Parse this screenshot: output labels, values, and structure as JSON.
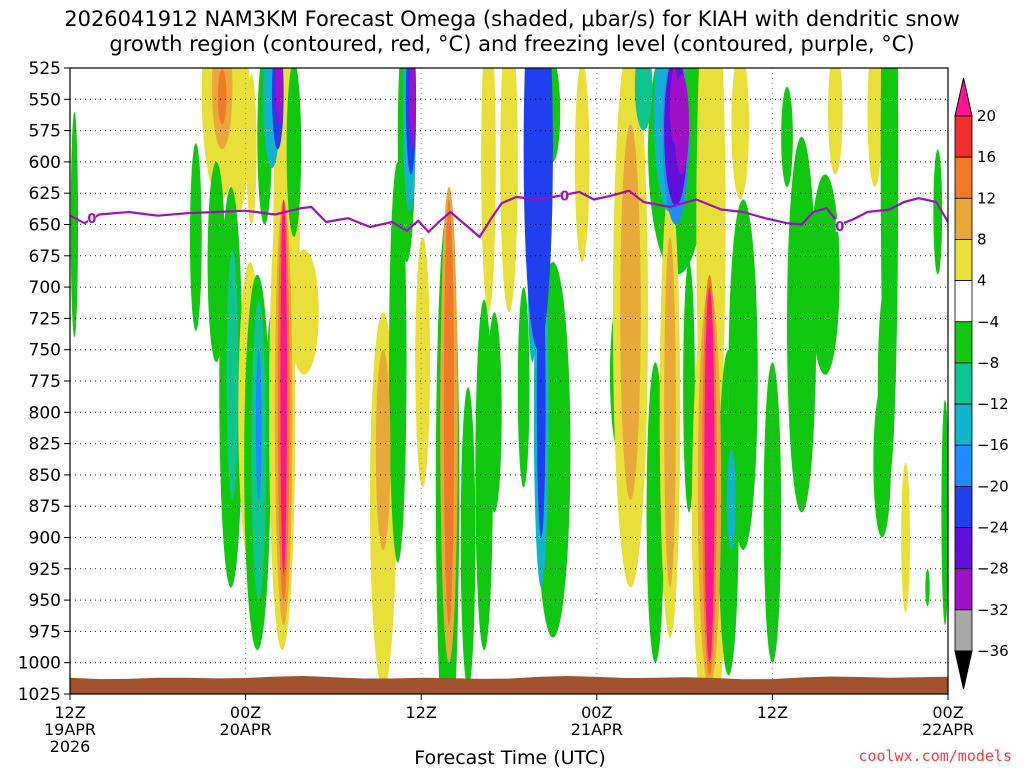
{
  "chart_data": {
    "type": "heatmap",
    "title_line1": "2026041912 NAM3KM Forecast Omega (shaded, μbar/s) for KIAH with dendritic snow",
    "title_line2": "growth region (contoured, red, °C) and freezing level (contoured, purple, °C)",
    "xlabel": "Forecast Time (UTC)",
    "credit": "coolwx.com/models",
    "y_axis": {
      "ticks": [
        "525",
        "550",
        "575",
        "600",
        "625",
        "650",
        "675",
        "700",
        "725",
        "750",
        "775",
        "800",
        "825",
        "850",
        "875",
        "900",
        "925",
        "950",
        "975",
        "1000",
        "1025"
      ],
      "ylim": [
        525,
        1025
      ]
    },
    "x_axis": {
      "ticks": [
        {
          "hour": 0,
          "line1": "12Z",
          "line2": "19APR",
          "line3": "2026"
        },
        {
          "hour": 12,
          "line1": "00Z",
          "line2": "20APR",
          "line3": ""
        },
        {
          "hour": 24,
          "line1": "12Z",
          "line2": "",
          "line3": ""
        },
        {
          "hour": 36,
          "line1": "00Z",
          "line2": "21APR",
          "line3": ""
        },
        {
          "hour": 48,
          "line1": "12Z",
          "line2": "",
          "line3": ""
        },
        {
          "hour": 60,
          "line1": "00Z",
          "line2": "22APR",
          "line3": ""
        }
      ],
      "xlim": [
        0,
        60
      ]
    },
    "colorbar": {
      "labels": [
        "20",
        "16",
        "12",
        "8",
        "4",
        "−4",
        "−8",
        "−12",
        "−16",
        "−20",
        "−24",
        "−28",
        "−32",
        "−36"
      ],
      "bins": [
        {
          "color": "#ff1493"
        },
        {
          "color": "#f03030"
        },
        {
          "color": "#f07a28"
        },
        {
          "color": "#e8a83a"
        },
        {
          "color": "#e8e038"
        },
        {
          "color": "#ffffff"
        },
        {
          "color": "#10c810"
        },
        {
          "color": "#10c490"
        },
        {
          "color": "#10b4cc"
        },
        {
          "color": "#1e8cff"
        },
        {
          "color": "#2040f0"
        },
        {
          "color": "#6010d8"
        },
        {
          "color": "#a010c8"
        },
        {
          "color": "#a8a8a8"
        },
        {
          "color": "#000000"
        }
      ]
    },
    "freezing_level": {
      "label": "0",
      "color": "#9f0fbf",
      "points": [
        [
          0,
          643
        ],
        [
          1,
          649
        ],
        [
          2,
          642
        ],
        [
          4,
          640
        ],
        [
          6,
          643
        ],
        [
          8,
          641
        ],
        [
          10,
          640
        ],
        [
          12,
          639
        ],
        [
          14,
          642
        ],
        [
          15.8,
          637
        ],
        [
          16.5,
          636
        ],
        [
          17.5,
          648
        ],
        [
          19,
          645
        ],
        [
          20.5,
          652
        ],
        [
          22,
          648
        ],
        [
          23,
          655
        ],
        [
          23.8,
          647
        ],
        [
          24.5,
          656
        ],
        [
          25.2,
          648
        ],
        [
          26,
          640
        ],
        [
          27,
          650
        ],
        [
          28,
          660
        ],
        [
          28.8,
          645
        ],
        [
          29.5,
          633
        ],
        [
          30.5,
          628
        ],
        [
          32,
          630
        ],
        [
          33.5,
          627
        ],
        [
          34.8,
          624
        ],
        [
          35.8,
          630
        ],
        [
          37,
          627
        ],
        [
          38.2,
          623
        ],
        [
          39.2,
          632
        ],
        [
          41,
          636
        ],
        [
          42.8,
          630
        ],
        [
          44.5,
          638
        ],
        [
          46,
          640
        ],
        [
          47.5,
          645
        ],
        [
          49,
          649
        ],
        [
          50,
          650
        ],
        [
          50.8,
          640
        ],
        [
          51.7,
          637
        ],
        [
          52.6,
          650
        ],
        [
          53.5,
          646
        ],
        [
          54.5,
          640
        ],
        [
          56,
          638
        ],
        [
          57,
          632
        ],
        [
          58,
          629
        ],
        [
          59.2,
          632
        ],
        [
          60,
          648
        ]
      ],
      "label_positions": [
        [
          1.5,
          645
        ],
        [
          33.8,
          627
        ],
        [
          52.6,
          651
        ]
      ]
    },
    "ground": {
      "color": "#a0522d",
      "pressure_top": 1012
    },
    "omega_regions": [
      {
        "v": 6,
        "t": 10.3,
        "p": 545,
        "dt": 1.3,
        "dp": 85
      },
      {
        "v": 10,
        "t": 10.4,
        "p": 540,
        "dt": 0.7,
        "dp": 50
      },
      {
        "v": 14,
        "t": 10.4,
        "p": 548,
        "dt": 0.3,
        "dp": 22
      },
      {
        "v": 6,
        "t": 11.5,
        "p": 560,
        "dt": 0.8,
        "dp": 80
      },
      {
        "v": 6,
        "t": 12.4,
        "p": 590,
        "dt": 0.35,
        "dp": 60
      },
      {
        "v": -6,
        "t": 0.3,
        "p": 650,
        "dt": 0.25,
        "dp": 90
      },
      {
        "v": -6,
        "t": 8.6,
        "p": 660,
        "dt": 0.4,
        "dp": 75
      },
      {
        "v": -6,
        "t": 10.0,
        "p": 680,
        "dt": 0.6,
        "dp": 80
      },
      {
        "v": -6,
        "t": 11.0,
        "p": 780,
        "dt": 0.8,
        "dp": 160
      },
      {
        "v": -10,
        "t": 11.1,
        "p": 770,
        "dt": 0.4,
        "dp": 100
      },
      {
        "v": 6,
        "t": 12.3,
        "p": 800,
        "dt": 0.8,
        "dp": 120
      },
      {
        "v": -6,
        "t": 12.8,
        "p": 840,
        "dt": 0.9,
        "dp": 150
      },
      {
        "v": -10,
        "t": 12.9,
        "p": 830,
        "dt": 0.5,
        "dp": 120
      },
      {
        "v": -16,
        "t": 12.9,
        "p": 810,
        "dt": 0.2,
        "dp": 60
      },
      {
        "v": -6,
        "t": 13.8,
        "p": 790,
        "dt": 0.4,
        "dp": 70
      },
      {
        "v": -6,
        "t": 13.3,
        "p": 580,
        "dt": 0.5,
        "dp": 70
      },
      {
        "v": -12,
        "t": 13.8,
        "p": 545,
        "dt": 0.6,
        "dp": 60
      },
      {
        "v": -20,
        "t": 14.2,
        "p": 545,
        "dt": 0.4,
        "dp": 45
      },
      {
        "v": -28,
        "t": 14.3,
        "p": 540,
        "dt": 0.25,
        "dp": 30
      },
      {
        "v": 6,
        "t": 14.8,
        "p": 650,
        "dt": 0.9,
        "dp": 150
      },
      {
        "v": 6,
        "t": 14.5,
        "p": 800,
        "dt": 0.9,
        "dp": 190
      },
      {
        "v": 10,
        "t": 14.6,
        "p": 800,
        "dt": 0.6,
        "dp": 170
      },
      {
        "v": 14,
        "t": 14.6,
        "p": 790,
        "dt": 0.4,
        "dp": 160
      },
      {
        "v": 22,
        "t": 14.6,
        "p": 780,
        "dt": 0.22,
        "dp": 150
      },
      {
        "v": -6,
        "t": 15.3,
        "p": 590,
        "dt": 0.5,
        "dp": 70
      },
      {
        "v": 6,
        "t": 16.0,
        "p": 720,
        "dt": 1.0,
        "dp": 50
      },
      {
        "v": -6,
        "t": 21.2,
        "p": 870,
        "dt": 0.3,
        "dp": 30
      },
      {
        "v": 6,
        "t": 21.4,
        "p": 870,
        "dt": 0.9,
        "dp": 150
      },
      {
        "v": 10,
        "t": 21.4,
        "p": 830,
        "dt": 0.5,
        "dp": 80
      },
      {
        "v": -6,
        "t": 22.4,
        "p": 760,
        "dt": 0.6,
        "dp": 160
      },
      {
        "v": -6,
        "t": 23.0,
        "p": 580,
        "dt": 0.6,
        "dp": 100
      },
      {
        "v": -12,
        "t": 23.2,
        "p": 560,
        "dt": 0.45,
        "dp": 80
      },
      {
        "v": -20,
        "t": 23.3,
        "p": 550,
        "dt": 0.35,
        "dp": 60
      },
      {
        "v": -28,
        "t": 23.4,
        "p": 545,
        "dt": 0.2,
        "dp": 45
      },
      {
        "v": 6,
        "t": 24.1,
        "p": 760,
        "dt": 0.5,
        "dp": 100
      },
      {
        "v": -6,
        "t": 25.8,
        "p": 860,
        "dt": 0.8,
        "dp": 220
      },
      {
        "v": 10,
        "t": 25.9,
        "p": 810,
        "dt": 0.6,
        "dp": 190
      },
      {
        "v": 14,
        "t": 25.9,
        "p": 800,
        "dt": 0.35,
        "dp": 170
      },
      {
        "v": -6,
        "t": 27.2,
        "p": 900,
        "dt": 0.5,
        "dp": 120
      },
      {
        "v": -6,
        "t": 28.3,
        "p": 850,
        "dt": 0.6,
        "dp": 140
      },
      {
        "v": -20,
        "t": 32.0,
        "p": 590,
        "dt": 1.0,
        "dp": 160
      },
      {
        "v": -6,
        "t": 33.0,
        "p": 830,
        "dt": 1.2,
        "dp": 150
      },
      {
        "v": -12,
        "t": 32.2,
        "p": 800,
        "dt": 0.5,
        "dp": 140
      },
      {
        "v": -20,
        "t": 32.2,
        "p": 790,
        "dt": 0.3,
        "dp": 110
      },
      {
        "v": -12,
        "t": 31.6,
        "p": 700,
        "dt": 0.3,
        "dp": 60
      },
      {
        "v": -6,
        "t": 31.0,
        "p": 780,
        "dt": 0.4,
        "dp": 80
      },
      {
        "v": -6,
        "t": 29.0,
        "p": 800,
        "dt": 0.5,
        "dp": 80
      },
      {
        "v": 6,
        "t": 28.6,
        "p": 600,
        "dt": 0.5,
        "dp": 120
      },
      {
        "v": 6,
        "t": 30.0,
        "p": 600,
        "dt": 0.6,
        "dp": 120
      },
      {
        "v": 6,
        "t": 35.0,
        "p": 600,
        "dt": 0.5,
        "dp": 80
      },
      {
        "v": -6,
        "t": 37.5,
        "p": 770,
        "dt": 0.6,
        "dp": 60
      },
      {
        "v": -6,
        "t": 33.0,
        "p": 560,
        "dt": 0.5,
        "dp": 40
      },
      {
        "v": 6,
        "t": 38.3,
        "p": 720,
        "dt": 1.2,
        "dp": 220
      },
      {
        "v": 10,
        "t": 38.3,
        "p": 720,
        "dt": 0.7,
        "dp": 150
      },
      {
        "v": -6,
        "t": 40.0,
        "p": 880,
        "dt": 0.6,
        "dp": 120
      },
      {
        "v": -8,
        "t": 39.2,
        "p": 540,
        "dt": 0.6,
        "dp": 35
      },
      {
        "v": -6,
        "t": 41.5,
        "p": 590,
        "dt": 2.0,
        "dp": 100
      },
      {
        "v": -12,
        "t": 41.0,
        "p": 560,
        "dt": 1.1,
        "dp": 80
      },
      {
        "v": -18,
        "t": 41.4,
        "p": 580,
        "dt": 0.9,
        "dp": 70
      },
      {
        "v": -24,
        "t": 41.4,
        "p": 575,
        "dt": 0.8,
        "dp": 60
      },
      {
        "v": -28,
        "t": 41.8,
        "p": 570,
        "dt": 0.5,
        "dp": 40
      },
      {
        "v": -30,
        "t": 41.3,
        "p": 555,
        "dt": 0.3,
        "dp": 30
      },
      {
        "v": -6,
        "t": 42.3,
        "p": 780,
        "dt": 0.4,
        "dp": 100
      },
      {
        "v": 6,
        "t": 41.0,
        "p": 800,
        "dt": 0.7,
        "dp": 180
      },
      {
        "v": 10,
        "t": 41.0,
        "p": 800,
        "dt": 0.4,
        "dp": 140
      },
      {
        "v": -6,
        "t": 43.8,
        "p": 560,
        "dt": 0.6,
        "dp": 70
      },
      {
        "v": 6,
        "t": 43.8,
        "p": 650,
        "dt": 1.0,
        "dp": 220
      },
      {
        "v": 6,
        "t": 43.7,
        "p": 880,
        "dt": 1.2,
        "dp": 180
      },
      {
        "v": 10,
        "t": 43.7,
        "p": 860,
        "dt": 0.8,
        "dp": 160
      },
      {
        "v": 14,
        "t": 43.7,
        "p": 850,
        "dt": 0.5,
        "dp": 160
      },
      {
        "v": 22,
        "t": 43.7,
        "p": 850,
        "dt": 0.35,
        "dp": 150
      },
      {
        "v": -6,
        "t": 45.0,
        "p": 880,
        "dt": 0.7,
        "dp": 130
      },
      {
        "v": -12,
        "t": 45.2,
        "p": 870,
        "dt": 0.3,
        "dp": 40
      },
      {
        "v": 6,
        "t": 45.5,
        "p": 780,
        "dt": 0.5,
        "dp": 60
      },
      {
        "v": -6,
        "t": 46.0,
        "p": 770,
        "dt": 1.0,
        "dp": 140
      },
      {
        "v": 6,
        "t": 45.8,
        "p": 570,
        "dt": 0.6,
        "dp": 60
      },
      {
        "v": -6,
        "t": 48.0,
        "p": 880,
        "dt": 0.6,
        "dp": 120
      },
      {
        "v": -6,
        "t": 50.0,
        "p": 730,
        "dt": 1.0,
        "dp": 150
      },
      {
        "v": -6,
        "t": 51.6,
        "p": 690,
        "dt": 1.0,
        "dp": 80
      },
      {
        "v": -6,
        "t": 49.0,
        "p": 580,
        "dt": 0.4,
        "dp": 40
      },
      {
        "v": 6,
        "t": 52.3,
        "p": 560,
        "dt": 0.5,
        "dp": 50
      },
      {
        "v": 6,
        "t": 55.0,
        "p": 560,
        "dt": 0.5,
        "dp": 60
      },
      {
        "v": -6,
        "t": 55.5,
        "p": 840,
        "dt": 0.6,
        "dp": 60
      },
      {
        "v": -6,
        "t": 56.0,
        "p": 600,
        "dt": 0.6,
        "dp": 250
      },
      {
        "v": -6,
        "t": 55.7,
        "p": 780,
        "dt": 0.5,
        "dp": 80
      },
      {
        "v": 6,
        "t": 57.1,
        "p": 900,
        "dt": 0.3,
        "dp": 60
      },
      {
        "v": -6,
        "t": 59.3,
        "p": 640,
        "dt": 0.3,
        "dp": 50
      },
      {
        "v": -6,
        "t": 59.8,
        "p": 880,
        "dt": 0.25,
        "dp": 90
      },
      {
        "v": -6,
        "t": 58.6,
        "p": 940,
        "dt": 0.15,
        "dp": 15
      }
    ]
  }
}
